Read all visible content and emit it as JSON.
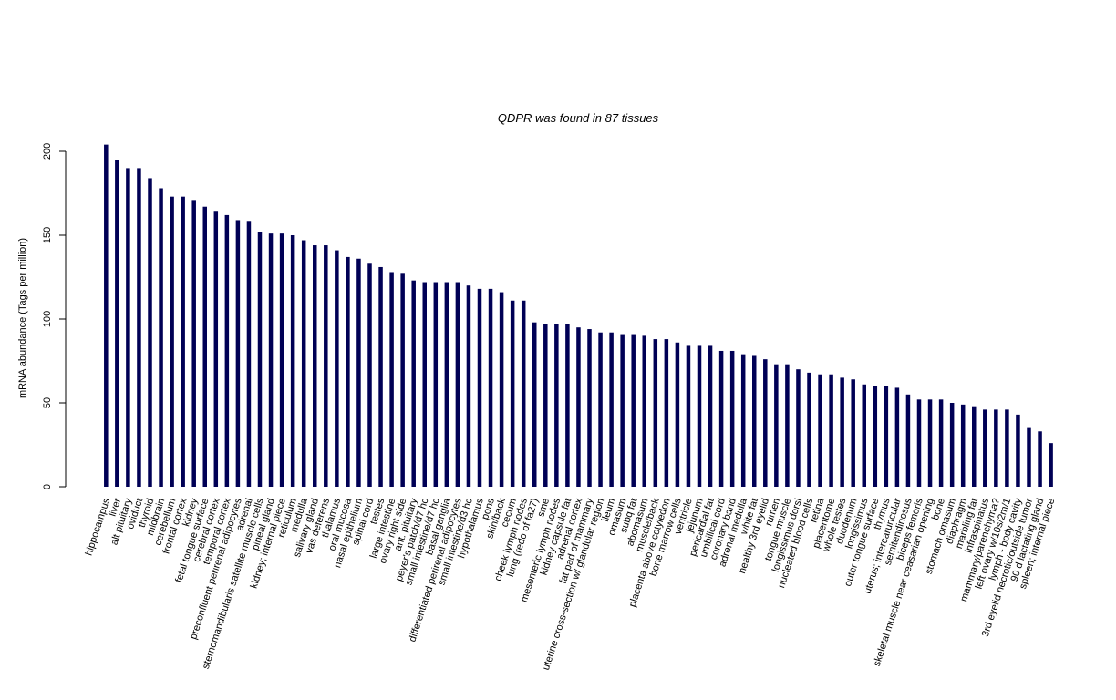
{
  "chart_data": {
    "type": "bar",
    "title": "QDPR  was found in  87  tissues",
    "xlabel": "",
    "ylabel": "mRNA abundance (Tags per million)",
    "ylim": [
      0,
      210
    ],
    "yticks": [
      0,
      50,
      100,
      150,
      200
    ],
    "grid": false,
    "bar_color": "#000055",
    "categories": [
      "hippocampus",
      "liver",
      "alt pituitary",
      "oviduct",
      "thyroid",
      "midbrain",
      "cerebellum",
      "frontal cortex",
      "kidney",
      "fetal tongue surface",
      "cerebral cortex",
      "temporal cortex",
      "preconfluent perirenal adipocytes",
      "adrenal",
      "sternomandibularis satellite muscle cells",
      "pineal gland",
      "kidney; internal piece",
      "reticulum",
      "medulla",
      "salivary gland",
      "vas deferens",
      "thalamus",
      "oral mucosa",
      "nasal epithelium",
      "spinal cord",
      "testes",
      "large intestine",
      "ovary right side",
      "ant. pituitary",
      "peyer's patch/d7 hc",
      "small intestine/d7 hc",
      "basal ganglia",
      "differentiated perirenal adipocytes",
      "small intestine/d3 hc",
      "hypothalamus",
      "pons",
      "skin/back",
      "cecum",
      "cheek lymph nodes",
      "lung (redo of fa27)",
      "sme",
      "mesenteric lymph nodes",
      "kidney capsule fat",
      "adrenal cortex",
      "fat pad of mammary",
      "uterine cross-section w/ glandular region",
      "ileum",
      "omasum",
      "subq fat",
      "abomasum",
      "muscle/back",
      "placenta above cotyledon",
      "bone marrow cells",
      "ventricle",
      "jejunum",
      "pericardial fat",
      "umbilical cord",
      "coronary band",
      "adrenal medulla",
      "white fat",
      "healthy 3rd eyelid",
      "rumen",
      "tongue muscle",
      "longissimus dorsi",
      "nucleated blood cells",
      "retina",
      "placentome",
      "whole testes",
      "duodenum",
      "longissimus",
      "outer tongue surface",
      "thymus",
      "uterus; intercaruncular",
      "semitendinosus",
      "biceps femoris",
      "skeletal muscle near ceasarian opening",
      "bone",
      "stomach omasum",
      "diaphragm",
      "marbling fat",
      "infraspinatus",
      "mammary/parenchyma?",
      "left ovary w/10s/2m/1",
      "lymph - body cavity",
      "3rd eyelid necrotic/outside tumor",
      "90 d lactating gland",
      "spleen; internal piece"
    ],
    "values": [
      204,
      195,
      190,
      190,
      184,
      178,
      173,
      173,
      171,
      167,
      164,
      162,
      159,
      158,
      152,
      151,
      151,
      150,
      147,
      144,
      144,
      141,
      137,
      136,
      133,
      131,
      128,
      127,
      123,
      122,
      122,
      122,
      122,
      120,
      118,
      118,
      116,
      111,
      111,
      98,
      97,
      97,
      97,
      95,
      94,
      92,
      92,
      91,
      91,
      90,
      88,
      88,
      86,
      84,
      84,
      84,
      81,
      81,
      79,
      78,
      76,
      73,
      73,
      70,
      68,
      67,
      67,
      65,
      64,
      61,
      60,
      60,
      59,
      55,
      52,
      52,
      52,
      50,
      49,
      48,
      46,
      46,
      46,
      43,
      35,
      33,
      26
    ]
  }
}
